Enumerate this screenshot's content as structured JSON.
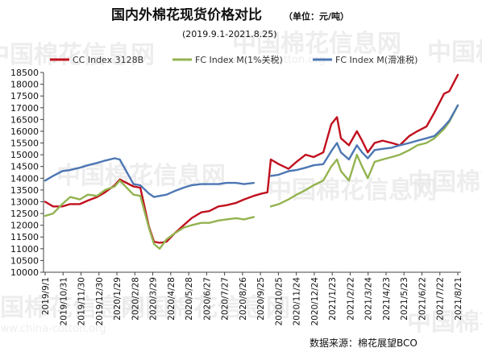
{
  "chart_data": {
    "type": "line",
    "title": "国内外棉花现货价格对比",
    "unit_note": "（单位：元/吨）",
    "subtitle": "(2019.9.1-2021.8.25)",
    "source": "数据来源：棉花展望BCO",
    "watermark": "中国棉花信息网",
    "watermark_url": "www.china-cotton.org",
    "grid": false,
    "legend_position": "top",
    "ylim": [
      10000,
      18500
    ],
    "y_ticks": [
      10000,
      10500,
      11000,
      11500,
      12000,
      12500,
      13000,
      13500,
      14000,
      14500,
      15000,
      15500,
      16000,
      16500,
      17000,
      17500,
      18000,
      18500
    ],
    "x_ticks": [
      "2019/9/1",
      "2019/10/31",
      "2019/11/30",
      "2019/12/30",
      "2020/1/29",
      "2020/2/28",
      "2020/3/29",
      "2020/4/28",
      "2020/5/28",
      "2020/6/27",
      "2020/7/27",
      "2020/8/26",
      "2020/9/25",
      "2020/10/25",
      "2020/11/24",
      "2020/12/24",
      "2021/1/23",
      "2021/2/22",
      "2021/3/24",
      "2021/4/23",
      "2021/5/23",
      "2021/6/22",
      "2021/7/22",
      "2021/8/21"
    ],
    "x": [
      "2019/9/1",
      "2019/9/15",
      "2019/10/1",
      "2019/10/15",
      "2019/11/1",
      "2019/11/15",
      "2019/12/1",
      "2019/12/15",
      "2020/1/1",
      "2020/1/10",
      "2020/2/3",
      "2020/2/15",
      "2020/3/1",
      "2020/3/10",
      "2020/3/20",
      "2020/4/1",
      "2020/4/15",
      "2020/5/1",
      "2020/5/15",
      "2020/6/1",
      "2020/6/15",
      "2020/7/1",
      "2020/7/15",
      "2020/8/1",
      "2020/8/15",
      "2020/9/1",
      "2020/9/15",
      "2020/9/25",
      "2020/10/1",
      "2020/10/15",
      "2020/11/1",
      "2020/11/15",
      "2020/12/1",
      "2020/12/15",
      "2021/1/1",
      "2021/1/15",
      "2021/1/25",
      "2021/2/1",
      "2021/2/15",
      "2021/3/1",
      "2021/3/10",
      "2021/3/20",
      "2021/4/1",
      "2021/4/15",
      "2021/5/1",
      "2021/5/15",
      "2021/6/1",
      "2021/6/15",
      "2021/7/1",
      "2021/7/15",
      "2021/8/1",
      "2021/8/10",
      "2021/8/25"
    ],
    "series": [
      {
        "name": "CC Index 3128B",
        "color": "#c0101e",
        "values": [
          13000,
          12800,
          12800,
          12900,
          12900,
          13050,
          13200,
          13400,
          13700,
          13950,
          13650,
          13600,
          11950,
          11300,
          11250,
          11300,
          11650,
          12000,
          12300,
          12550,
          12600,
          12800,
          12850,
          12950,
          13100,
          13250,
          13350,
          13400,
          14800,
          14600,
          14400,
          14700,
          15000,
          14900,
          15100,
          16300,
          16600,
          15700,
          15400,
          16000,
          15600,
          15100,
          15500,
          15600,
          15500,
          15400,
          15800,
          16000,
          16200,
          16800,
          17600,
          17700,
          18400
        ]
      },
      {
        "name": "FC Index M(1%关税)",
        "color": "#93b350",
        "values": [
          12400,
          12500,
          12900,
          13200,
          13100,
          13300,
          13250,
          13500,
          13650,
          13900,
          13300,
          13250,
          11900,
          11200,
          11000,
          11400,
          11650,
          11900,
          12000,
          12100,
          12100,
          12200,
          12250,
          12300,
          12250,
          12350,
          null,
          null,
          12800,
          12900,
          13100,
          13300,
          13500,
          13700,
          13900,
          14500,
          14800,
          14300,
          13900,
          15000,
          14500,
          14000,
          14700,
          14800,
          14900,
          15000,
          15200,
          15400,
          15500,
          15700,
          16100,
          16400,
          17100
        ]
      },
      {
        "name": "FC Index M(滑准税)",
        "color": "#4d77b3",
        "values": [
          13900,
          14100,
          14300,
          14350,
          14450,
          14550,
          14650,
          14750,
          14850,
          14800,
          13750,
          13700,
          13350,
          13200,
          13250,
          13300,
          13450,
          13600,
          13700,
          13750,
          13750,
          13750,
          13800,
          13800,
          13750,
          13800,
          null,
          null,
          14100,
          14150,
          14300,
          14350,
          14450,
          14550,
          14600,
          15150,
          15500,
          15100,
          14800,
          15400,
          15100,
          14850,
          15200,
          15250,
          15300,
          15400,
          15500,
          15600,
          15700,
          15800,
          16200,
          16450,
          17100
        ]
      }
    ]
  }
}
